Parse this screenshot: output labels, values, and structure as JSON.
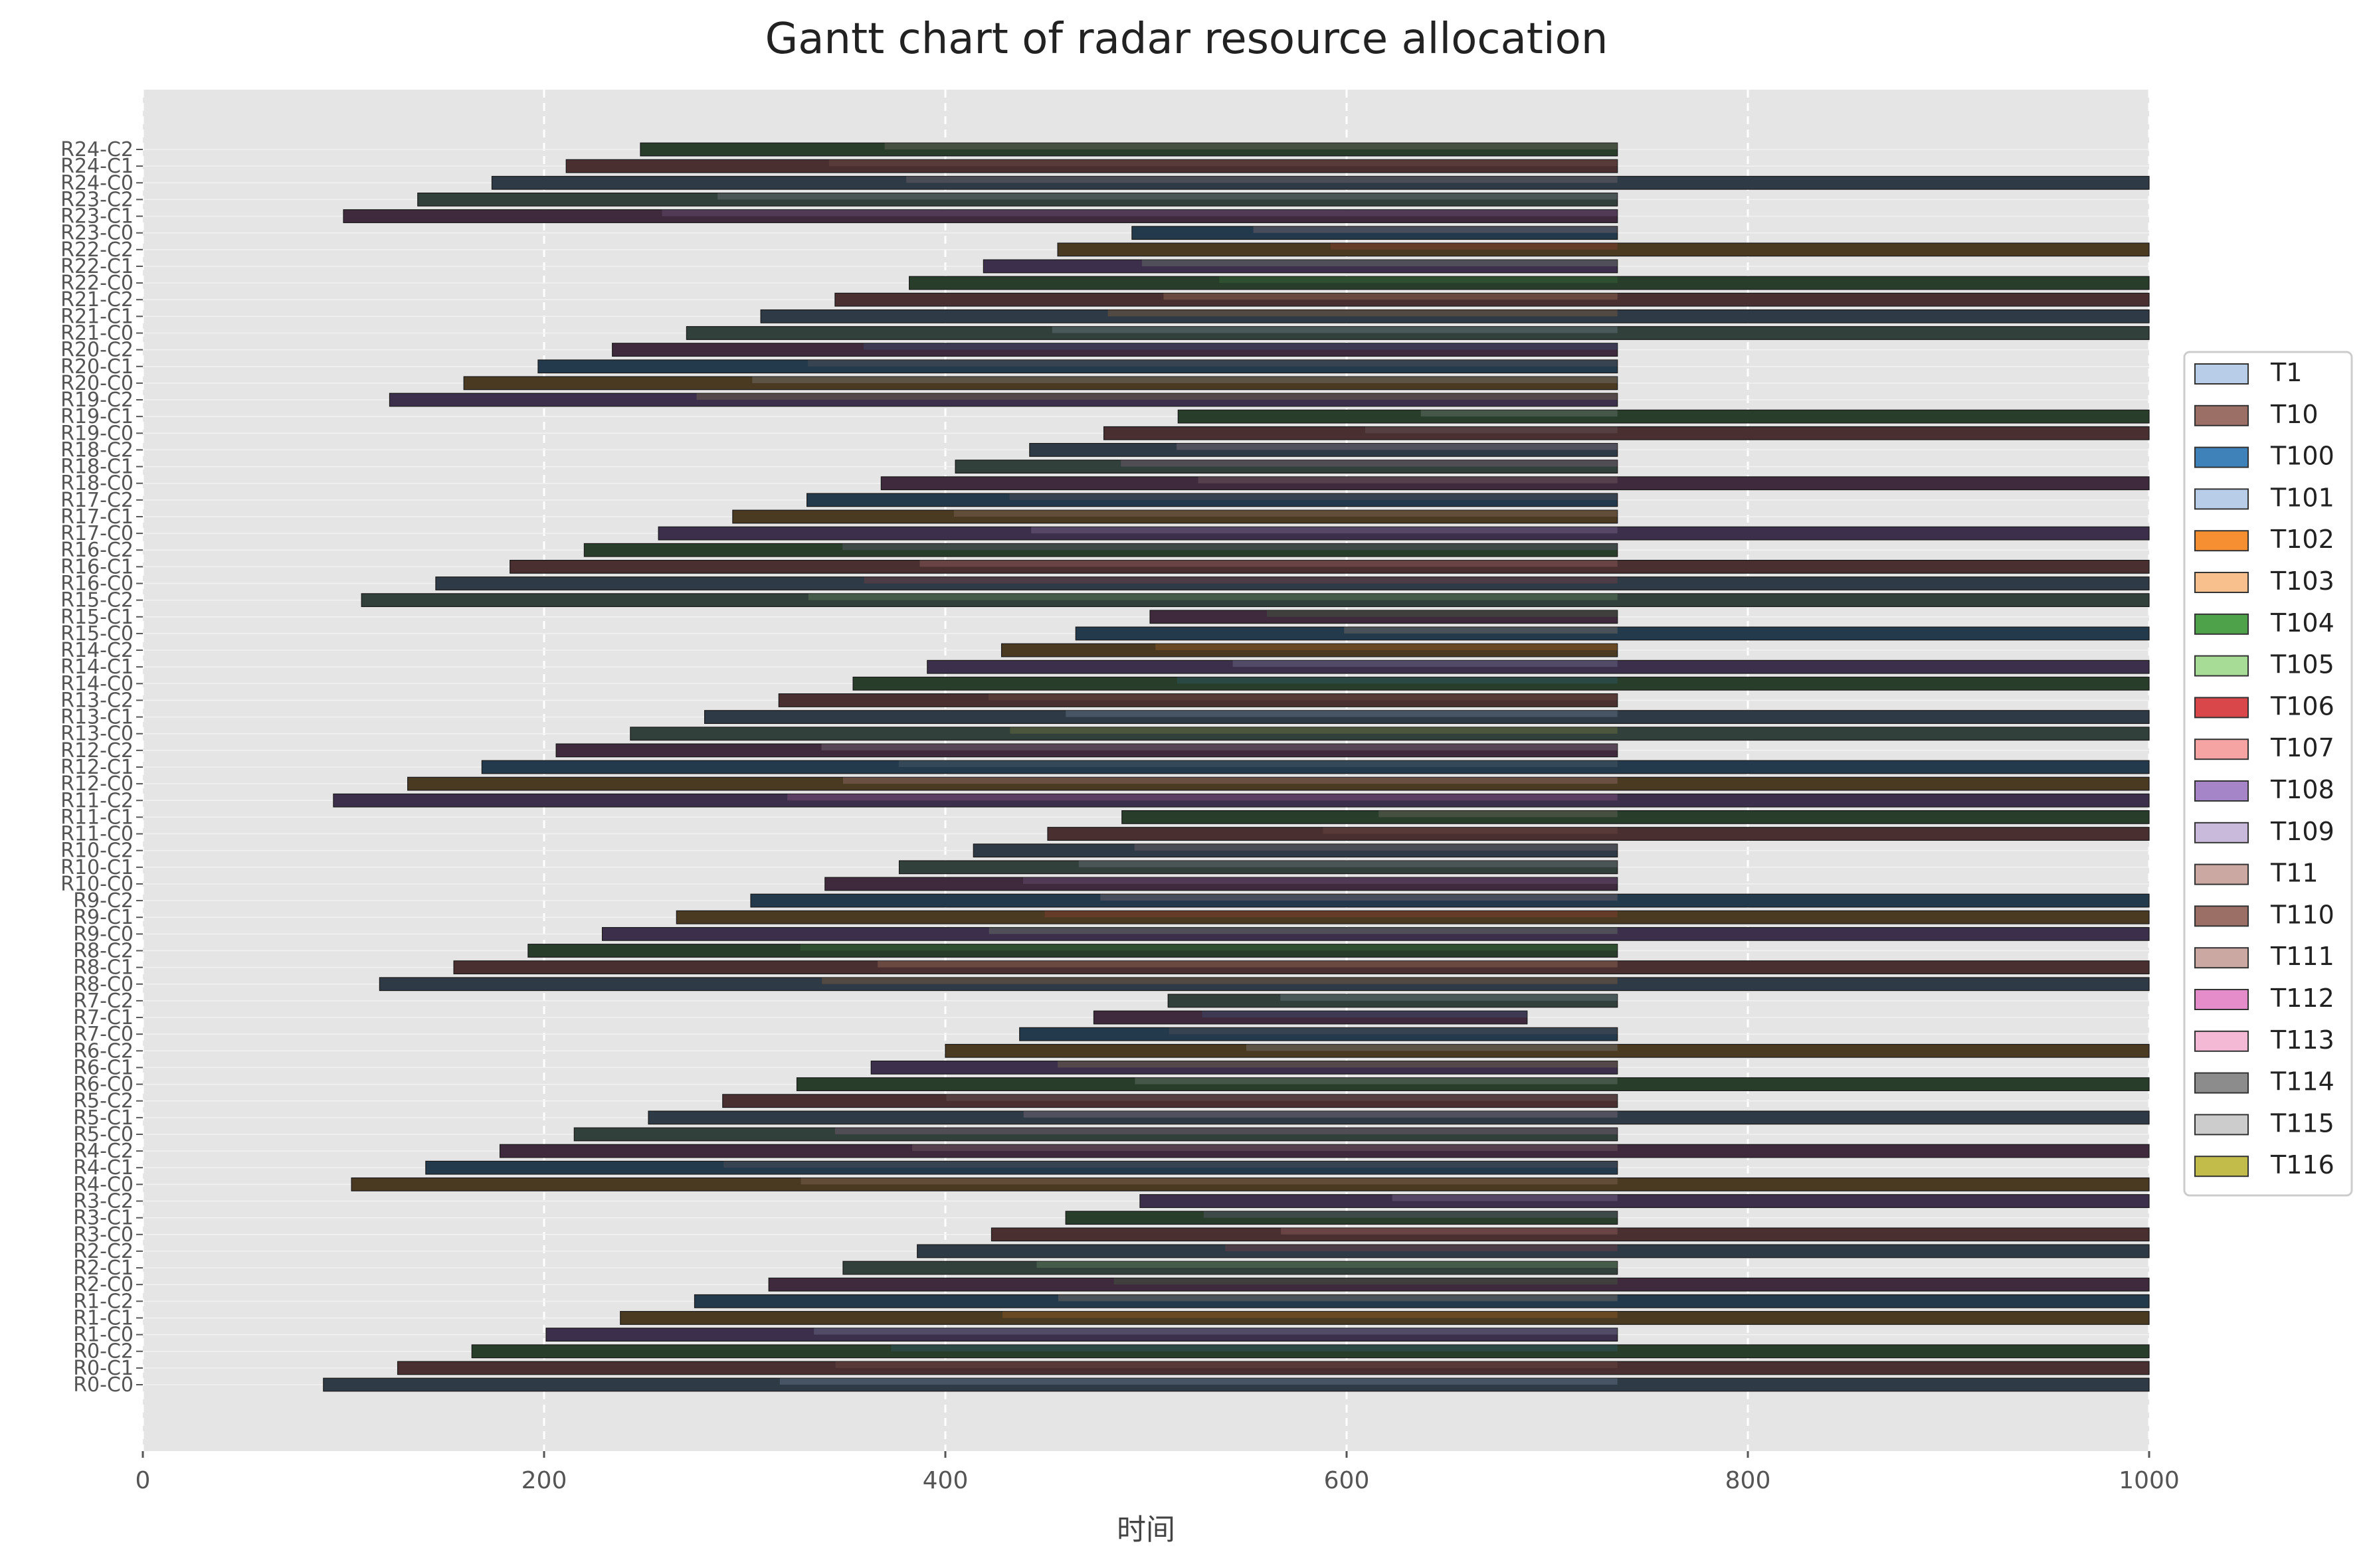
{
  "chart_data": {
    "type": "bar",
    "orientation": "horizontal-gantt",
    "title": "Gantt chart of radar resource allocation",
    "xlabel": "时间",
    "xlim": [
      0,
      1000
    ],
    "x_ticks": [
      0,
      200,
      400,
      600,
      800,
      1000
    ],
    "grid": true,
    "legend_placement": "right",
    "rows": [
      {
        "label": "R0-C0",
        "end": 1000
      },
      {
        "label": "R0-C1",
        "end": 1000
      },
      {
        "label": "R0-C2",
        "end": 1000
      },
      {
        "label": "R1-C0",
        "end": 735
      },
      {
        "label": "R1-C1",
        "end": 1000
      },
      {
        "label": "R1-C2",
        "end": 1000
      },
      {
        "label": "R2-C0",
        "end": 1000
      },
      {
        "label": "R2-C1",
        "end": 735
      },
      {
        "label": "R2-C2",
        "end": 1000
      },
      {
        "label": "R3-C0",
        "end": 1000
      },
      {
        "label": "R3-C1",
        "end": 735
      },
      {
        "label": "R3-C2",
        "end": 1000
      },
      {
        "label": "R4-C0",
        "end": 1000
      },
      {
        "label": "R4-C1",
        "end": 735
      },
      {
        "label": "R4-C2",
        "end": 1000
      },
      {
        "label": "R5-C0",
        "end": 735
      },
      {
        "label": "R5-C1",
        "end": 1000
      },
      {
        "label": "R5-C2",
        "end": 735
      },
      {
        "label": "R6-C0",
        "end": 1000
      },
      {
        "label": "R6-C1",
        "end": 735
      },
      {
        "label": "R6-C2",
        "end": 1000
      },
      {
        "label": "R7-C0",
        "end": 735
      },
      {
        "label": "R7-C1",
        "end": 690
      },
      {
        "label": "R7-C2",
        "end": 735
      },
      {
        "label": "R8-C0",
        "end": 1000
      },
      {
        "label": "R8-C1",
        "end": 1000
      },
      {
        "label": "R8-C2",
        "end": 735
      },
      {
        "label": "R9-C0",
        "end": 1000
      },
      {
        "label": "R9-C1",
        "end": 1000
      },
      {
        "label": "R9-C2",
        "end": 1000
      },
      {
        "label": "R10-C0",
        "end": 735
      },
      {
        "label": "R10-C1",
        "end": 735
      },
      {
        "label": "R10-C2",
        "end": 735
      },
      {
        "label": "R11-C0",
        "end": 1000
      },
      {
        "label": "R11-C1",
        "end": 1000
      },
      {
        "label": "R11-C2",
        "end": 1000
      },
      {
        "label": "R12-C0",
        "end": 1000
      },
      {
        "label": "R12-C1",
        "end": 1000
      },
      {
        "label": "R12-C2",
        "end": 735
      },
      {
        "label": "R13-C0",
        "end": 1000
      },
      {
        "label": "R13-C1",
        "end": 1000
      },
      {
        "label": "R13-C2",
        "end": 735
      },
      {
        "label": "R14-C0",
        "end": 1000
      },
      {
        "label": "R14-C1",
        "end": 1000
      },
      {
        "label": "R14-C2",
        "end": 735
      },
      {
        "label": "R15-C0",
        "end": 1000
      },
      {
        "label": "R15-C1",
        "end": 735
      },
      {
        "label": "R15-C2",
        "end": 1000
      },
      {
        "label": "R16-C0",
        "end": 1000
      },
      {
        "label": "R16-C1",
        "end": 1000
      },
      {
        "label": "R16-C2",
        "end": 735
      },
      {
        "label": "R17-C0",
        "end": 1000
      },
      {
        "label": "R17-C1",
        "end": 735
      },
      {
        "label": "R17-C2",
        "end": 735
      },
      {
        "label": "R18-C0",
        "end": 1000
      },
      {
        "label": "R18-C1",
        "end": 735
      },
      {
        "label": "R18-C2",
        "end": 735
      },
      {
        "label": "R19-C0",
        "end": 1000
      },
      {
        "label": "R19-C1",
        "end": 1000
      },
      {
        "label": "R19-C2",
        "end": 735
      },
      {
        "label": "R20-C0",
        "end": 735
      },
      {
        "label": "R20-C1",
        "end": 735
      },
      {
        "label": "R20-C2",
        "end": 735
      },
      {
        "label": "R21-C0",
        "end": 1000
      },
      {
        "label": "R21-C1",
        "end": 1000
      },
      {
        "label": "R21-C2",
        "end": 1000
      },
      {
        "label": "R22-C0",
        "end": 1000
      },
      {
        "label": "R22-C1",
        "end": 735
      },
      {
        "label": "R22-C2",
        "end": 1000
      },
      {
        "label": "R23-C0",
        "end": 735
      },
      {
        "label": "R23-C1",
        "end": 735
      },
      {
        "label": "R23-C2",
        "end": 735
      },
      {
        "label": "R24-C0",
        "end": 1000
      },
      {
        "label": "R24-C1",
        "end": 735
      },
      {
        "label": "R24-C2",
        "end": 735
      }
    ],
    "legend": [
      {
        "name": "T1",
        "color": "#b7cde8"
      },
      {
        "name": "T10",
        "color": "#9b6f66"
      },
      {
        "name": "T100",
        "color": "#3f82b9"
      },
      {
        "name": "T101",
        "color": "#b7cde8"
      },
      {
        "name": "T102",
        "color": "#f68e32"
      },
      {
        "name": "T103",
        "color": "#f8c08c"
      },
      {
        "name": "T104",
        "color": "#4ea24a"
      },
      {
        "name": "T105",
        "color": "#a6dc96"
      },
      {
        "name": "T106",
        "color": "#d9474a"
      },
      {
        "name": "T107",
        "color": "#f6a4a3"
      },
      {
        "name": "T108",
        "color": "#a584c7"
      },
      {
        "name": "T109",
        "color": "#c9b9da"
      },
      {
        "name": "T11",
        "color": "#cba8a2"
      },
      {
        "name": "T110",
        "color": "#9b6f66"
      },
      {
        "name": "T111",
        "color": "#cba8a2"
      },
      {
        "name": "T112",
        "color": "#e58dcb"
      },
      {
        "name": "T113",
        "color": "#f3b9d5"
      },
      {
        "name": "T114",
        "color": "#8c8c8c"
      },
      {
        "name": "T115",
        "color": "#cccccc"
      },
      {
        "name": "T116",
        "color": "#c2bd4a"
      }
    ]
  }
}
